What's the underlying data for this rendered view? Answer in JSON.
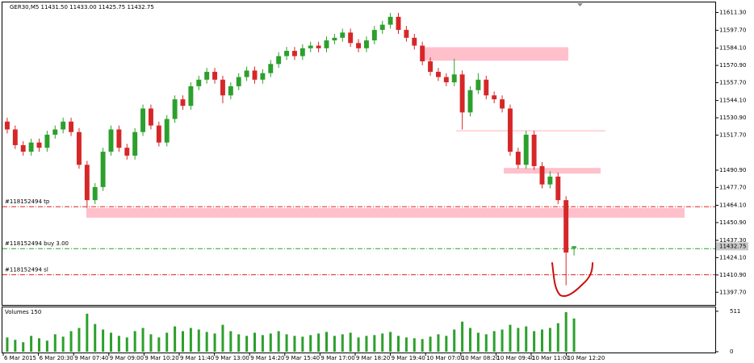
{
  "chart_data": {
    "type": "candlestick",
    "title": "GER30,M5  11431.50 11433.00 11425.75 11432.75",
    "up_color": "#2ca02c",
    "down_color": "#d62728",
    "open": [
      11528,
      11522,
      11510,
      11505,
      11512,
      11508,
      11518,
      11522,
      11528,
      11520,
      11495,
      11468,
      11478,
      11505,
      11522,
      11508,
      11502,
      11520,
      11538,
      11525,
      11512,
      11530,
      11545,
      11540,
      11555,
      11560,
      11566,
      11560,
      11548,
      11555,
      11562,
      11567,
      11560,
      11565,
      11572,
      11578,
      11582,
      11578,
      11584,
      11586,
      11584,
      11590,
      11592,
      11596,
      11588,
      11584,
      11590,
      11598,
      11602,
      11608,
      11598,
      11592,
      11586,
      11574,
      11566,
      11562,
      11558,
      11564,
      11535,
      11552,
      11560,
      11548,
      11545,
      11538,
      11505,
      11495,
      11518,
      11494,
      11480,
      11486,
      11468,
      11431.5
    ],
    "high": [
      11531,
      11525,
      11513,
      11515,
      11515,
      11521,
      11525,
      11531,
      11531,
      11523,
      11498,
      11481,
      11508,
      11525,
      11525,
      11511,
      11523,
      11541,
      11541,
      11528,
      11533,
      11548,
      11548,
      11558,
      11563,
      11569,
      11569,
      11563,
      11558,
      11565,
      11570,
      11570,
      11568,
      11575,
      11581,
      11585,
      11585,
      11587,
      11589,
      11589,
      11593,
      11595,
      11599,
      11599,
      11591,
      11593,
      11601,
      11605,
      11611,
      11611,
      11601,
      11595,
      11589,
      11577,
      11569,
      11565,
      11576,
      11567,
      11555,
      11565,
      11563,
      11551,
      11548,
      11541,
      11508,
      11521,
      11521,
      11497,
      11490,
      11489,
      11471,
      11433
    ],
    "low": [
      11519,
      11507,
      11502,
      11502,
      11505,
      11505,
      11515,
      11519,
      11517,
      11492,
      11462,
      11465,
      11475,
      11502,
      11505,
      11499,
      11499,
      11517,
      11522,
      11509,
      11509,
      11527,
      11537,
      11537,
      11552,
      11557,
      11557,
      11542,
      11545,
      11552,
      11559,
      11557,
      11557,
      11562,
      11569,
      11575,
      11575,
      11575,
      11581,
      11581,
      11581,
      11587,
      11589,
      11585,
      11581,
      11581,
      11587,
      11595,
      11599,
      11595,
      11589,
      11583,
      11571,
      11563,
      11559,
      11555,
      11555,
      11522,
      11532,
      11549,
      11545,
      11542,
      11535,
      11502,
      11492,
      11492,
      11491,
      11477,
      11477,
      11465,
      11403,
      11425.75
    ],
    "close": [
      11522,
      11510,
      11505,
      11512,
      11508,
      11518,
      11522,
      11528,
      11520,
      11495,
      11468,
      11478,
      11505,
      11522,
      11508,
      11502,
      11520,
      11538,
      11525,
      11512,
      11530,
      11545,
      11540,
      11555,
      11560,
      11566,
      11560,
      11548,
      11555,
      11562,
      11567,
      11560,
      11565,
      11572,
      11578,
      11582,
      11578,
      11584,
      11586,
      11584,
      11590,
      11592,
      11596,
      11588,
      11584,
      11590,
      11598,
      11602,
      11608,
      11598,
      11592,
      11586,
      11574,
      11566,
      11562,
      11558,
      11564,
      11535,
      11552,
      11560,
      11548,
      11545,
      11538,
      11505,
      11495,
      11518,
      11494,
      11480,
      11486,
      11468,
      11428,
      11432.75
    ],
    "ylim": [
      11388,
      11619
    ],
    "yticks": [
      {
        "value": 11611.3,
        "label": "11611.30"
      },
      {
        "value": 11597.7,
        "label": "11597.70"
      },
      {
        "value": 11584.1,
        "label": "11584.10"
      },
      {
        "value": 11570.9,
        "label": "11570.90"
      },
      {
        "value": 11557.7,
        "label": "11557.70"
      },
      {
        "value": 11544.1,
        "label": "11544.10"
      },
      {
        "value": 11530.9,
        "label": "11530.90"
      },
      {
        "value": 11517.7,
        "label": "11517.70"
      },
      {
        "value": 11490.9,
        "label": "11490.90"
      },
      {
        "value": 11477.7,
        "label": "11477.70"
      },
      {
        "value": 11464.1,
        "label": "11464.10"
      },
      {
        "value": 11450.9,
        "label": "11450.90"
      },
      {
        "value": 11437.3,
        "label": "11437.30"
      },
      {
        "value": 11424.1,
        "label": "11424.10"
      },
      {
        "value": 11410.9,
        "label": "11410.90"
      },
      {
        "value": 11397.7,
        "label": "11397.70"
      }
    ],
    "time_labels": [
      "6 Mar 2015",
      "6 Mar 20:30",
      "9 Mar 07:40",
      "9 Mar 09:00",
      "9 Mar 10:20",
      "9 Mar 11:40",
      "9 Mar 13:00",
      "9 Mar 14:20",
      "9 Mar 15:40",
      "9 Mar 17:00",
      "9 Mar 18:20",
      "9 Mar 19:40",
      "10 Mar 07:00",
      "10 Mar 08:20",
      "10 Mar 09:40",
      "10 Mar 11:00",
      "10 Mar 12:20"
    ],
    "orders": [
      {
        "label": "#118152494 tp",
        "price": 11463,
        "color": "#e02020"
      },
      {
        "label": "#118152494 buy 3.00",
        "price": 11431,
        "color": "#2ca02c"
      },
      {
        "label": "#118152494 sl",
        "price": 11411,
        "color": "#e02020"
      }
    ],
    "zones": [
      {
        "top": 11584.8,
        "bottom": 11574.5
      },
      {
        "top": 11462,
        "bottom": 11454.6
      },
      {
        "top": 11492.6,
        "bottom": 11488.3
      }
    ],
    "zone_color": "#ffc0cb",
    "support_line": 11521,
    "volume_title": "Volumes 150",
    "volume_color": "#2ca02c",
    "volumes": [
      180,
      150,
      120,
      200,
      170,
      140,
      220,
      190,
      260,
      300,
      480,
      350,
      280,
      240,
      200,
      180,
      260,
      300,
      220,
      180,
      240,
      320,
      260,
      300,
      280,
      250,
      230,
      340,
      260,
      220,
      200,
      240,
      210,
      230,
      260,
      220,
      200,
      190,
      210,
      230,
      250,
      200,
      220,
      240,
      180,
      200,
      210,
      230,
      250,
      200,
      180,
      170,
      160,
      190,
      220,
      200,
      280,
      380,
      300,
      240,
      220,
      260,
      280,
      340,
      300,
      320,
      260,
      280,
      300,
      360,
      500,
      420
    ],
    "vlim": [
      0,
      540
    ],
    "vticks": [
      511,
      0
    ]
  }
}
